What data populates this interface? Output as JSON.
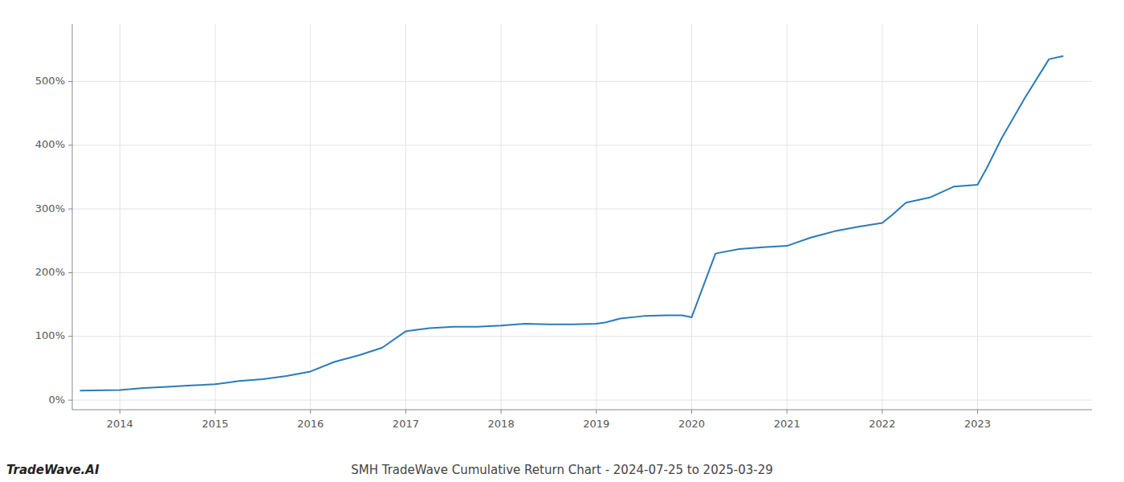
{
  "chart_data": {
    "type": "line",
    "title": "SMH TradeWave Cumulative Return Chart - 2024-07-25 to 2025-03-29",
    "annotations": [
      "TradeWave.AI"
    ],
    "color": "#2b7bba",
    "grid": true,
    "x": [
      2013.58,
      2014.0,
      2014.1,
      2014.25,
      2014.5,
      2014.75,
      2015.0,
      2015.1,
      2015.25,
      2015.5,
      2015.75,
      2016.0,
      2016.25,
      2016.5,
      2016.75,
      2017.0,
      2017.1,
      2017.25,
      2017.5,
      2017.75,
      2018.0,
      2018.25,
      2018.5,
      2018.75,
      2019.0,
      2019.1,
      2019.25,
      2019.5,
      2019.75,
      2019.9,
      2020.0,
      2020.1,
      2020.25,
      2020.5,
      2020.75,
      2021.0,
      2021.25,
      2021.5,
      2021.75,
      2022.0,
      2022.1,
      2022.25,
      2022.5,
      2022.75,
      2023.0,
      2023.1,
      2023.25,
      2023.5,
      2023.75,
      2023.9
    ],
    "values": [
      15,
      16,
      17,
      19,
      21,
      23,
      25,
      27,
      30,
      33,
      38,
      45,
      60,
      70,
      82,
      108,
      110,
      113,
      115,
      115,
      117,
      120,
      119,
      119,
      120,
      122,
      128,
      132,
      133,
      133,
      130,
      170,
      230,
      237,
      240,
      242,
      255,
      265,
      272,
      278,
      290,
      310,
      318,
      335,
      338,
      365,
      410,
      475,
      535,
      540
    ],
    "xlim": [
      2013.5,
      2024.2
    ],
    "ylim": [
      -15,
      590
    ],
    "xticks": [
      2014,
      2015,
      2016,
      2017,
      2018,
      2019,
      2020,
      2021,
      2022,
      2023
    ],
    "yticks": [
      {
        "value": 0,
        "label": "0%"
      },
      {
        "value": 100,
        "label": "100%"
      },
      {
        "value": 200,
        "label": "200%"
      },
      {
        "value": 300,
        "label": "300%"
      },
      {
        "value": 400,
        "label": "400%"
      },
      {
        "value": 500,
        "label": "500%"
      }
    ]
  }
}
